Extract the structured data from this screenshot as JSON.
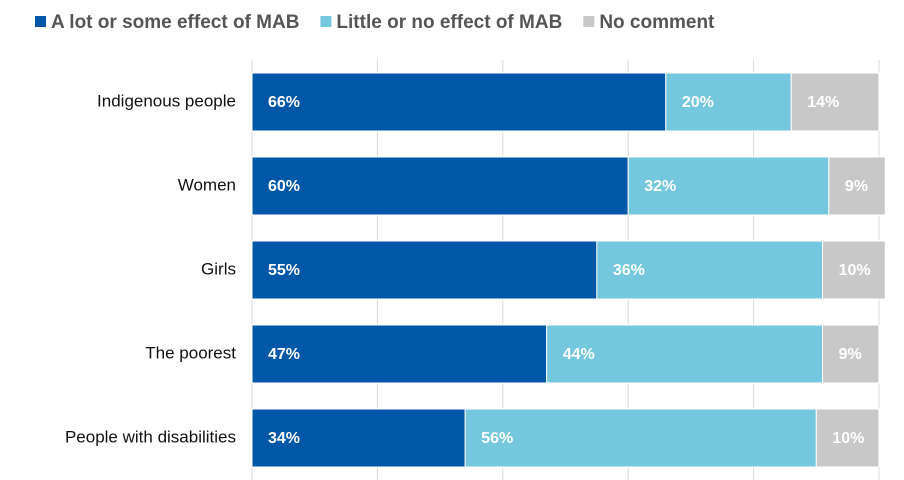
{
  "chart_data": {
    "type": "stacked_bar_horizontal",
    "categories": [
      "Indigenous people",
      "Women",
      "Girls",
      "The poorest",
      "People with disabilities"
    ],
    "series": [
      {
        "name": "A lot or some effect of MAB",
        "color": "#0057a8",
        "values": [
          66,
          60,
          55,
          47,
          34
        ],
        "value_labels": [
          "66%",
          "60%",
          "55%",
          "47%",
          "34%"
        ]
      },
      {
        "name": "Little or no effect of MAB",
        "color": "#74c7dc",
        "values": [
          20,
          32,
          36,
          44,
          56
        ],
        "value_labels": [
          "20%",
          "32%",
          "36%",
          "44%",
          "56%"
        ]
      },
      {
        "name": "No comment",
        "color": "#c8c8c8",
        "values": [
          14,
          9,
          10,
          9,
          10
        ],
        "value_labels": [
          "14%",
          "9%",
          "10%",
          "9%",
          "10%"
        ]
      }
    ],
    "xlim": [
      0,
      100
    ],
    "xticks": [
      0,
      20,
      40,
      60,
      80,
      100
    ],
    "grid": true,
    "legend": "top"
  }
}
